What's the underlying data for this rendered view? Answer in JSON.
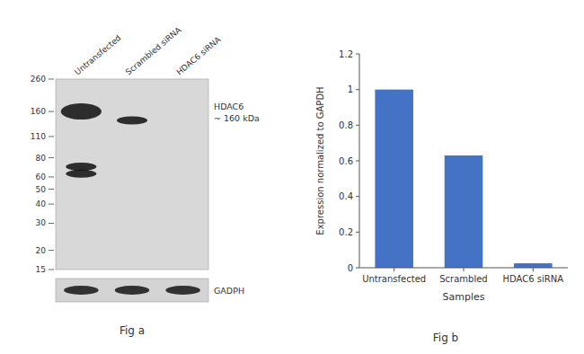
{
  "chart_data": [
    {
      "type": "blot",
      "title": "Fig a",
      "categories": [
        "Untransfected",
        "Scrambled siRNA",
        "HDAC6 siRNA"
      ],
      "log": "y",
      "ylim": [
        15,
        260
      ],
      "yticks": [
        260,
        160,
        110,
        80,
        60,
        50,
        40,
        30,
        20,
        15
      ],
      "bands": [
        {
          "lane": 0,
          "mw": 160
        },
        {
          "lane": 1,
          "mw": 140
        },
        {
          "lane": 0,
          "mw": 70
        },
        {
          "lane": 0,
          "mw": 63
        }
      ],
      "annotations": [
        "HDAC6",
        "~ 160 kDa",
        "GADPH"
      ],
      "colors": [
        "#d8d8d8",
        "#d4d4d4"
      ]
    },
    {
      "type": "bar",
      "title": "Fig b",
      "categories": [
        "Untransfected",
        "Scrambled",
        "HDAC6 siRNA"
      ],
      "values": [
        1.0,
        0.63,
        0.025
      ],
      "color": "#4472c4",
      "ylim": [
        0,
        1.2
      ],
      "yticks": [
        0,
        0.2,
        0.4,
        0.6,
        0.8,
        1,
        1.2
      ],
      "xlabel": "Samples",
      "ylabel": "Expression normalized to GAPDH",
      "grid": false
    }
  ]
}
